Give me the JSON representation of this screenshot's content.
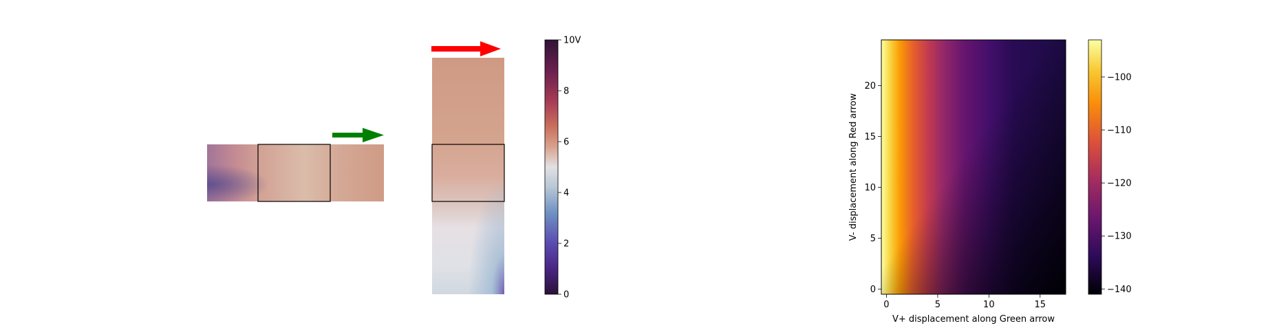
{
  "chart_data": [
    {
      "type": "heatmap",
      "description_role": "left potential maps",
      "colormap": "twilight_shifted",
      "colorbar": {
        "range": [
          0,
          10
        ],
        "ticks": [
          {
            "value": 0,
            "label": "0"
          },
          {
            "value": 2,
            "label": "2"
          },
          {
            "value": 4,
            "label": "4"
          },
          {
            "value": 6,
            "label": "6"
          },
          {
            "value": 8,
            "label": "8"
          },
          {
            "value": 10,
            "label": "10V"
          }
        ]
      },
      "arrows": [
        {
          "name": "green",
          "color": "#008000",
          "direction": "right"
        },
        {
          "name": "red",
          "color": "#ff0000",
          "direction": "right"
        }
      ],
      "electrode_box_color": "#000000"
    },
    {
      "type": "heatmap",
      "colormap": "inferno",
      "xlabel": "V+ displacement along Green arrow",
      "ylabel": "V- displacement along Red arrow",
      "xlim": [
        -0.5,
        17.5
      ],
      "ylim": [
        -0.5,
        24.5
      ],
      "xticks": [
        {
          "value": 0,
          "label": "0"
        },
        {
          "value": 5,
          "label": "5"
        },
        {
          "value": 10,
          "label": "10"
        },
        {
          "value": 15,
          "label": "15"
        }
      ],
      "yticks": [
        {
          "value": 0,
          "label": "0"
        },
        {
          "value": 5,
          "label": "5"
        },
        {
          "value": 10,
          "label": "10"
        },
        {
          "value": 15,
          "label": "15"
        },
        {
          "value": 20,
          "label": "20"
        }
      ],
      "colorbar": {
        "range": [
          -141,
          -93
        ],
        "ticks": [
          {
            "value": -100,
            "label": "−100"
          },
          {
            "value": -110,
            "label": "−110"
          },
          {
            "value": -120,
            "label": "−120"
          },
          {
            "value": -130,
            "label": "−130"
          },
          {
            "value": -140,
            "label": "−140"
          }
        ]
      },
      "grid": false
    }
  ]
}
